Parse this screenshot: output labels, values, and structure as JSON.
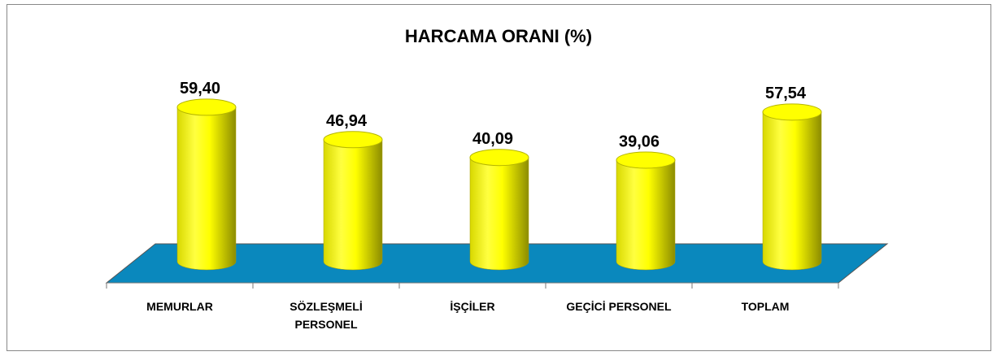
{
  "chart_data": {
    "type": "bar",
    "title": "HARCAMA ORANI (%)",
    "categories": [
      "MEMURLAR",
      "SÖZLEŞMELİ PERSONEL",
      "İŞÇİLER",
      "GEÇİCİ PERSONEL",
      "TOPLAM"
    ],
    "values": [
      59.4,
      46.94,
      40.09,
      39.06,
      57.54
    ],
    "value_labels": [
      "59,40",
      "46,94",
      "40,09",
      "39,06",
      "57,54"
    ],
    "color": "#ffff00"
  }
}
